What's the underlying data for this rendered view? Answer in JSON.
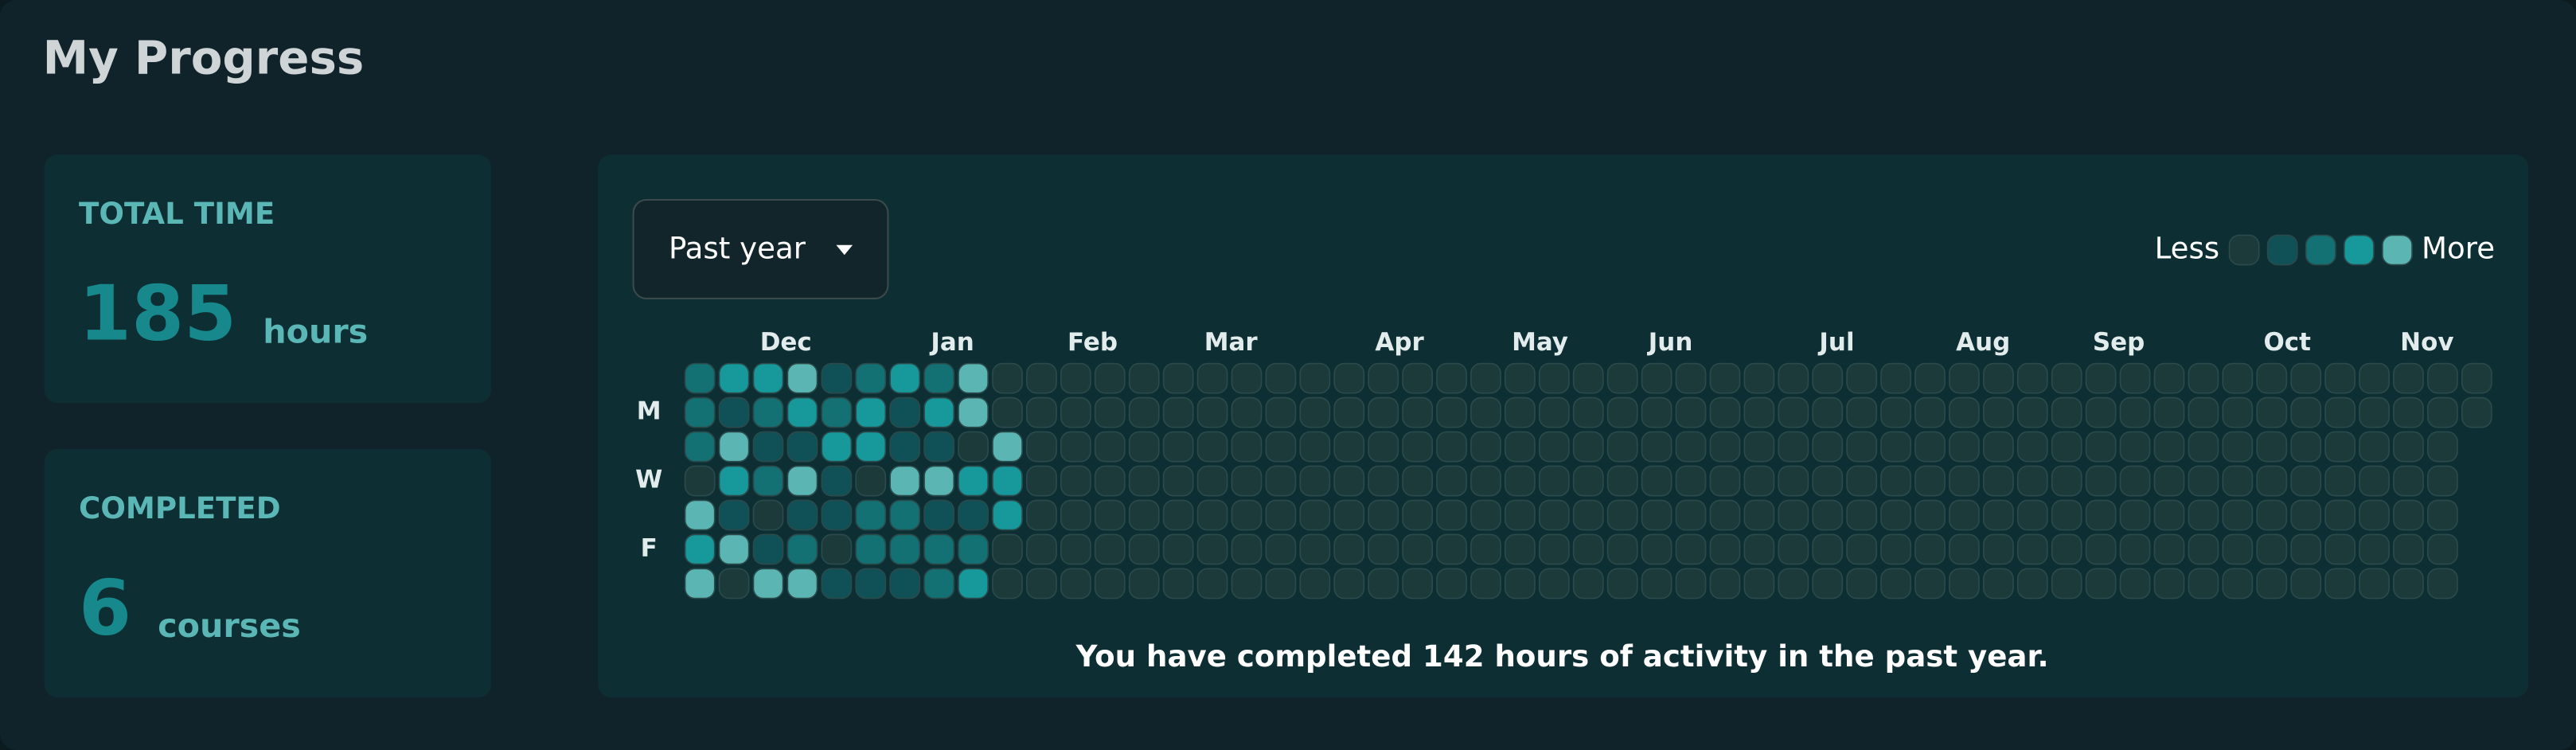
{
  "header": {
    "title": "My Progress"
  },
  "stats": [
    {
      "label": "TOTAL TIME",
      "value": 185,
      "unit": "hours"
    },
    {
      "label": "COMPLETED",
      "value": 6,
      "unit": "courses"
    }
  ],
  "heatmap": {
    "range_selector": "Past year",
    "legend": {
      "less": "Less",
      "more": "More",
      "levels": [
        0,
        1,
        2,
        3,
        4
      ]
    },
    "colors": [
      "#1d3a3b",
      "#0f5156",
      "#137174",
      "#17989b",
      "#5bb6b3"
    ],
    "months": [
      "Dec",
      "Jan",
      "Feb",
      "Mar",
      "Apr",
      "May",
      "Jun",
      "Jul",
      "Aug",
      "Sep",
      "Oct",
      "Nov"
    ],
    "days": [
      "M",
      "W",
      "F"
    ],
    "rows": [
      [
        2,
        3,
        3,
        4,
        1,
        2,
        3,
        2,
        4,
        0,
        0,
        0,
        0,
        0,
        0,
        0,
        0,
        0,
        0,
        0,
        0,
        0,
        0,
        0,
        0,
        0,
        0,
        0,
        0,
        0,
        0,
        0,
        0,
        0,
        0,
        0,
        0,
        0,
        0,
        0,
        0,
        0,
        0,
        0,
        0,
        0,
        0,
        0,
        0,
        0,
        0,
        0,
        0
      ],
      [
        2,
        1,
        2,
        3,
        2,
        3,
        1,
        3,
        4,
        0,
        0,
        0,
        0,
        0,
        0,
        0,
        0,
        0,
        0,
        0,
        0,
        0,
        0,
        0,
        0,
        0,
        0,
        0,
        0,
        0,
        0,
        0,
        0,
        0,
        0,
        0,
        0,
        0,
        0,
        0,
        0,
        0,
        0,
        0,
        0,
        0,
        0,
        0,
        0,
        0,
        0,
        0,
        0
      ],
      [
        2,
        4,
        1,
        1,
        3,
        3,
        1,
        1,
        0,
        4,
        0,
        0,
        0,
        0,
        0,
        0,
        0,
        0,
        0,
        0,
        0,
        0,
        0,
        0,
        0,
        0,
        0,
        0,
        0,
        0,
        0,
        0,
        0,
        0,
        0,
        0,
        0,
        0,
        0,
        0,
        0,
        0,
        0,
        0,
        0,
        0,
        0,
        0,
        0,
        0,
        0,
        0
      ],
      [
        0,
        3,
        2,
        4,
        1,
        0,
        4,
        4,
        3,
        3,
        0,
        0,
        0,
        0,
        0,
        0,
        0,
        0,
        0,
        0,
        0,
        0,
        0,
        0,
        0,
        0,
        0,
        0,
        0,
        0,
        0,
        0,
        0,
        0,
        0,
        0,
        0,
        0,
        0,
        0,
        0,
        0,
        0,
        0,
        0,
        0,
        0,
        0,
        0,
        0,
        0,
        0
      ],
      [
        4,
        1,
        0,
        1,
        1,
        2,
        2,
        1,
        1,
        3,
        0,
        0,
        0,
        0,
        0,
        0,
        0,
        0,
        0,
        0,
        0,
        0,
        0,
        0,
        0,
        0,
        0,
        0,
        0,
        0,
        0,
        0,
        0,
        0,
        0,
        0,
        0,
        0,
        0,
        0,
        0,
        0,
        0,
        0,
        0,
        0,
        0,
        0,
        0,
        0,
        0,
        0
      ],
      [
        3,
        4,
        1,
        2,
        0,
        2,
        2,
        2,
        2,
        0,
        0,
        0,
        0,
        0,
        0,
        0,
        0,
        0,
        0,
        0,
        0,
        0,
        0,
        0,
        0,
        0,
        0,
        0,
        0,
        0,
        0,
        0,
        0,
        0,
        0,
        0,
        0,
        0,
        0,
        0,
        0,
        0,
        0,
        0,
        0,
        0,
        0,
        0,
        0,
        0,
        0,
        0
      ],
      [
        4,
        0,
        4,
        4,
        1,
        1,
        1,
        2,
        3,
        0,
        0,
        0,
        0,
        0,
        0,
        0,
        0,
        0,
        0,
        0,
        0,
        0,
        0,
        0,
        0,
        0,
        0,
        0,
        0,
        0,
        0,
        0,
        0,
        0,
        0,
        0,
        0,
        0,
        0,
        0,
        0,
        0,
        0,
        0,
        0,
        0,
        0,
        0,
        0,
        0,
        0,
        0
      ]
    ],
    "summary": "You have completed 142 hours of activity in the past year."
  }
}
